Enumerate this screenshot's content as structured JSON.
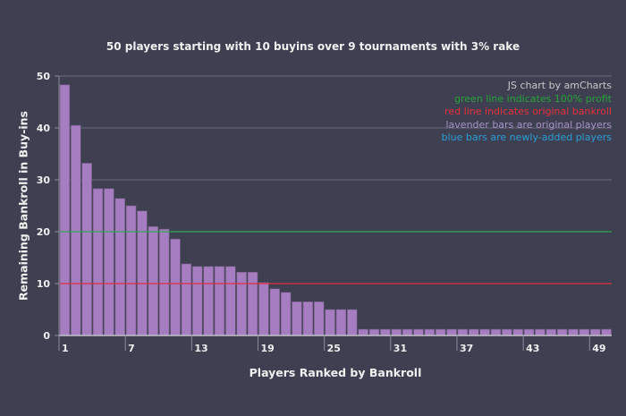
{
  "chart_data": {
    "type": "bar",
    "title": "50 players starting with 10 buyins over 9 tournaments with 3% rake",
    "xlabel": "Players Ranked by Bankroll",
    "ylabel": "Remaining Bankroll in Buy-ins",
    "ylim": [
      0,
      50
    ],
    "yticks": [
      0,
      10,
      20,
      30,
      40,
      50
    ],
    "xticks": [
      1,
      7,
      13,
      19,
      25,
      31,
      37,
      43,
      49
    ],
    "grid": true,
    "categories": [
      1,
      2,
      3,
      4,
      5,
      6,
      7,
      8,
      9,
      10,
      11,
      12,
      13,
      14,
      15,
      16,
      17,
      18,
      19,
      20,
      21,
      22,
      23,
      24,
      25,
      26,
      27,
      28,
      29,
      30,
      31,
      32,
      33,
      34,
      35,
      36,
      37,
      38,
      39,
      40,
      41,
      42,
      43,
      44,
      45,
      46,
      47,
      48,
      49,
      50
    ],
    "series": [
      {
        "name": "original players",
        "color": "#a77dc2",
        "values": [
          48.3,
          40.5,
          33.2,
          28.3,
          28.3,
          26.4,
          25.0,
          24.0,
          21.0,
          20.5,
          18.6,
          13.8,
          13.3,
          13.3,
          13.3,
          13.3,
          12.2,
          12.2,
          10.2,
          9.0,
          8.3,
          6.5,
          6.5,
          6.5,
          5.0,
          5.0,
          5.0,
          1.2,
          1.2,
          1.2,
          1.2,
          1.2,
          1.2,
          1.2,
          1.2,
          1.2,
          1.2,
          1.2,
          1.2,
          1.2,
          1.2,
          1.2,
          1.2,
          1.2,
          1.2,
          1.2,
          1.2,
          1.2,
          1.2,
          1.2
        ]
      }
    ],
    "reference_lines": [
      {
        "name": "100% profit",
        "value": 20,
        "color": "#2fa84f"
      },
      {
        "name": "original bankroll",
        "value": 10,
        "color": "#e0303a"
      }
    ],
    "legend": {
      "position": "top-right",
      "entries": [
        {
          "text": "JS chart by amCharts",
          "color": "#c8c8c8"
        },
        {
          "text": "green line indicates 100% profit",
          "color": "#27a33a"
        },
        {
          "text": "red line indicates original bankroll",
          "color": "#e8303a"
        },
        {
          "text": "lavender bars are original players",
          "color": "#a892c9"
        },
        {
          "text": "blue bars are newly-added players",
          "color": "#2a9fd6"
        }
      ]
    }
  }
}
